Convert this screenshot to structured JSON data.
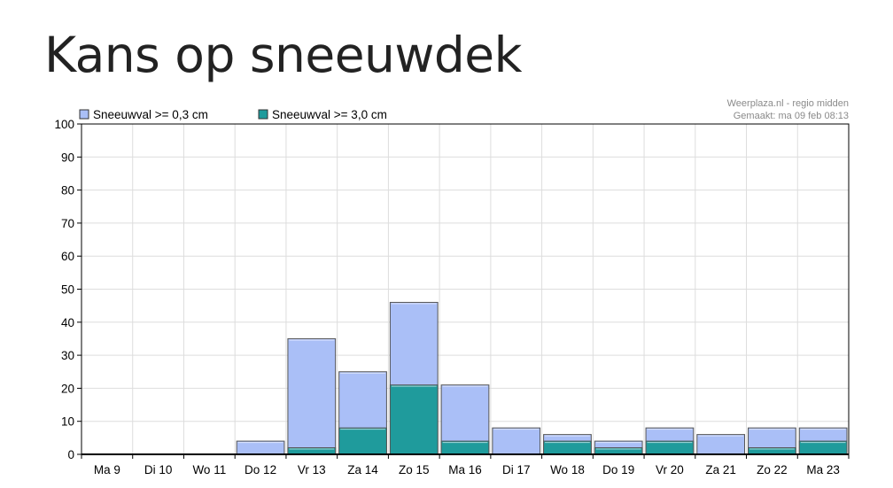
{
  "page": {
    "title": "Kans op sneeuwdek"
  },
  "credit": {
    "line1": "Weerplaza.nl - regio midden",
    "line2": "Gemaakt: ma 09 feb 08:13"
  },
  "colors": {
    "light_series": "#aabff7",
    "dark_series": "#1f9b9c",
    "grid": "#dddddd",
    "axis": "#000000"
  },
  "chart_data": {
    "type": "bar",
    "stacked": "overlay",
    "categories": [
      "Ma 9",
      "Di 10",
      "Wo 11",
      "Do 12",
      "Vr 13",
      "Za 14",
      "Zo 15",
      "Ma 16",
      "Di 17",
      "Wo 18",
      "Do 19",
      "Vr 20",
      "Za 21",
      "Zo 22",
      "Ma 23"
    ],
    "series": [
      {
        "name": "Sneeuwval >= 0,3 cm",
        "color": "#aabff7",
        "values": [
          0,
          0,
          0,
          4,
          35,
          25,
          46,
          21,
          8,
          6,
          4,
          8,
          6,
          8,
          8
        ]
      },
      {
        "name": "Sneeuwval >= 3,0 cm",
        "color": "#1f9b9c",
        "values": [
          0,
          0,
          0,
          0,
          2,
          8,
          21,
          4,
          0,
          4,
          2,
          4,
          0,
          2,
          4
        ]
      }
    ],
    "ylim": [
      0,
      100
    ],
    "yticks": [
      0,
      10,
      20,
      30,
      40,
      50,
      60,
      70,
      80,
      90,
      100
    ],
    "grid": true,
    "legend": "top-left"
  }
}
